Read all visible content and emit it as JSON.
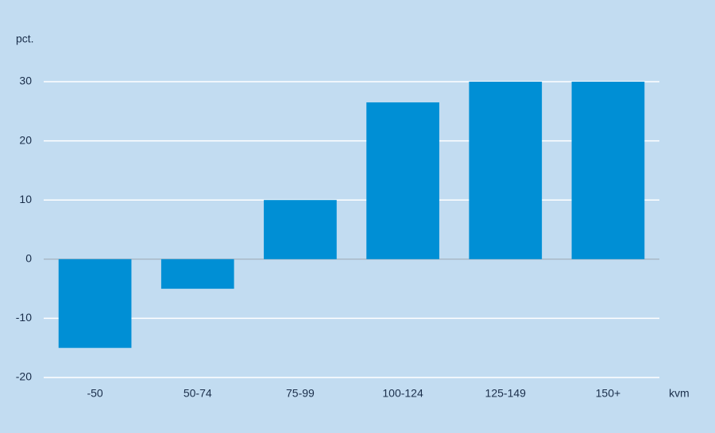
{
  "chart_data": {
    "type": "bar",
    "y_label": "pct.",
    "x_label": "kvm",
    "categories": [
      "-50",
      "50-74",
      "75-99",
      "100-124",
      "125-149",
      "150+"
    ],
    "values": [
      -15,
      -5,
      10,
      26.5,
      30,
      30
    ],
    "color": "#008fd5",
    "ylim": [
      -20,
      30
    ],
    "yticks": [
      -20,
      -10,
      0,
      10,
      20,
      30
    ],
    "grid": true
  }
}
